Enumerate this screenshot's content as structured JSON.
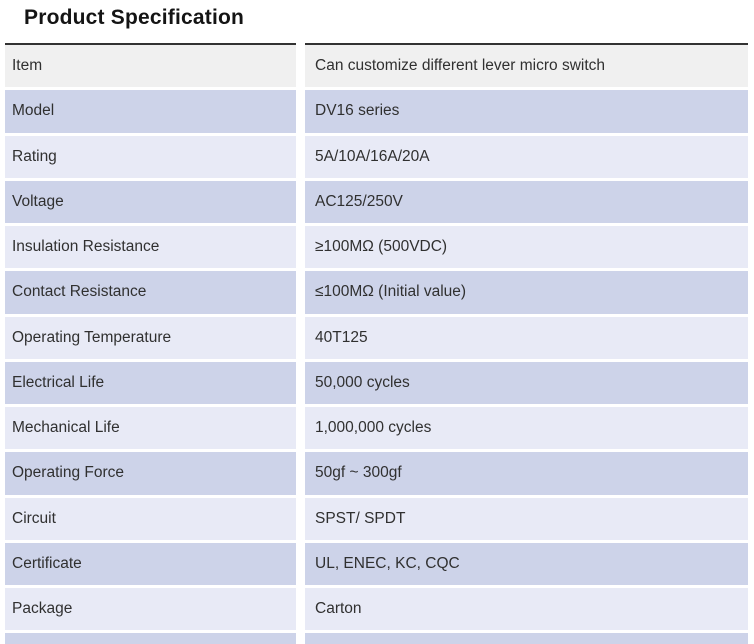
{
  "title": "Product Specification",
  "table": {
    "rows": [
      {
        "label": "Item",
        "value": "Can customize different lever micro switch"
      },
      {
        "label": "Model",
        "value": "DV16 series"
      },
      {
        "label": "Rating",
        "value": "5A/10A/16A/20A"
      },
      {
        "label": "Voltage",
        "value": "AC125/250V"
      },
      {
        "label": "Insulation Resistance",
        "value": "≥100MΩ (500VDC)"
      },
      {
        "label": "Contact Resistance",
        "value": "≤100MΩ (Initial value)"
      },
      {
        "label": "Operating Temperature",
        "value": "40T125"
      },
      {
        "label": "Electrical Life",
        "value": "50,000 cycles"
      },
      {
        "label": "Mechanical Life",
        "value": "1,000,000 cycles"
      },
      {
        "label": "Operating Force",
        "value": "50gf ~ 300gf"
      },
      {
        "label": "Circuit",
        "value": "SPST/ SPDT"
      },
      {
        "label": "Certificate",
        "value": "UL, ENEC, KC, CQC"
      },
      {
        "label": "Package",
        "value": "Carton"
      }
    ]
  },
  "colors": {
    "header_row_bg": "#f0f0f0",
    "even_row_bg": "#cdd3e9",
    "odd_row_bg": "#e8eaf6",
    "top_border": "#323232",
    "text": "#303030"
  }
}
